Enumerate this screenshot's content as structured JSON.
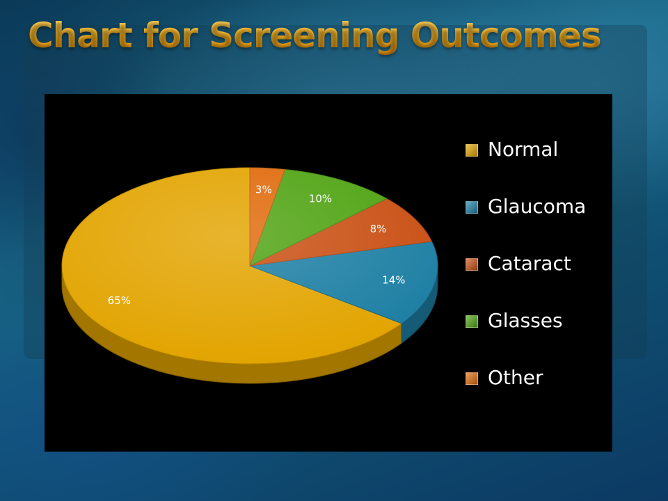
{
  "slide": {
    "title": "Chart for Screening Outcomes"
  },
  "chart_data": {
    "type": "pie",
    "style": "3d",
    "categories": [
      "Normal",
      "Glaucoma",
      "Cataract",
      "Glasses",
      "Other"
    ],
    "values": [
      65,
      14,
      8,
      10,
      3
    ],
    "data_labels": [
      "65%",
      "14%",
      "8%",
      "10%",
      "3%"
    ],
    "colors": [
      "#e2a400",
      "#1d7fa3",
      "#c94f13",
      "#4fa312",
      "#e06a0a"
    ],
    "legend_position": "right",
    "title": ""
  }
}
